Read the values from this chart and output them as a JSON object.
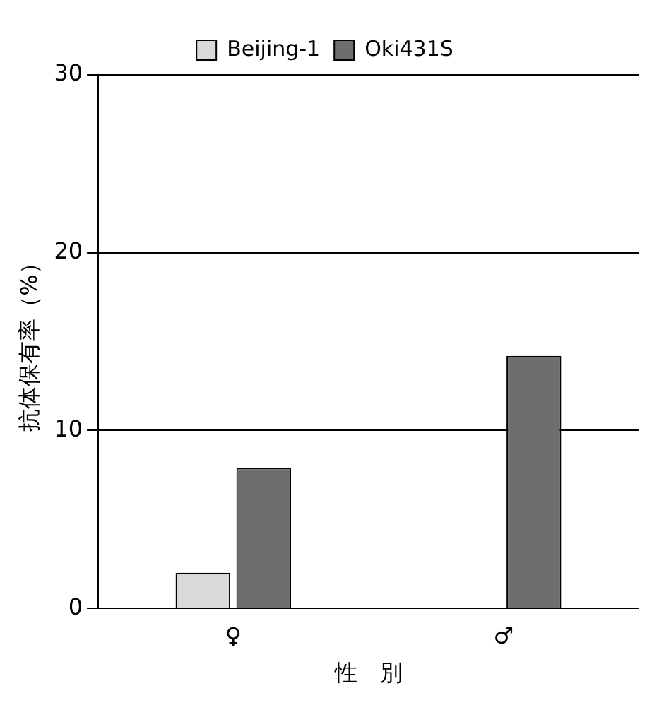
{
  "chart_data": {
    "type": "bar",
    "xlabel": "性　別",
    "ylabel": "抗体保有率（%）",
    "categories": [
      "♀",
      "♂"
    ],
    "series": [
      {
        "name": "Beijing-1",
        "color": "#d9d9d9",
        "values": [
          2,
          0
        ]
      },
      {
        "name": "Oki431S",
        "color": "#6e6e6e",
        "values": [
          7.9,
          14.2
        ]
      }
    ],
    "ylim": [
      0,
      30
    ],
    "yticks": [
      0,
      10,
      20,
      30
    ],
    "grid": "y",
    "legend": "top"
  }
}
